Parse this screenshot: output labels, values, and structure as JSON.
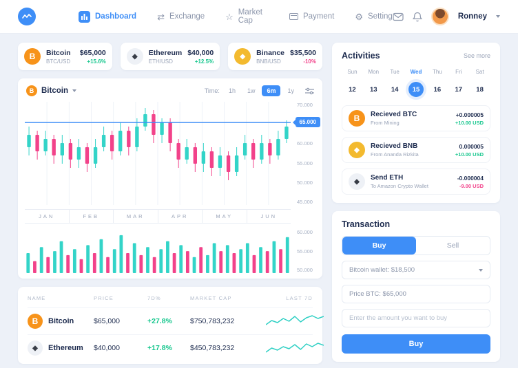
{
  "navbar": {
    "items": [
      {
        "label": "Dashboard"
      },
      {
        "label": "Exchange"
      },
      {
        "label": "Market Cap"
      },
      {
        "label": "Payment"
      },
      {
        "label": "Setting"
      }
    ],
    "user_name": "Ronney"
  },
  "icons": {
    "exchange": "⇄",
    "market_cap": "☆",
    "setting": "⚙",
    "bitcoin": "B",
    "ethereum": "◆",
    "binance": "◆"
  },
  "price_cards": [
    {
      "name": "Bitcoin",
      "pair": "BTC/USD",
      "price": "$65,000",
      "change": "+15.6%"
    },
    {
      "name": "Ethereum",
      "pair": "ETH/USD",
      "price": "$40,000",
      "change": "+12.5%"
    },
    {
      "name": "Binance",
      "pair": "BNB/USD",
      "price": "$35,500",
      "change": "-10%"
    }
  ],
  "chart_card": {
    "coin": "Bitcoin",
    "time_label": "Time:",
    "ranges": [
      {
        "label": "1h"
      },
      {
        "label": "1w"
      },
      {
        "label": "6m"
      },
      {
        "label": "1y"
      }
    ],
    "active_range": "6m",
    "y_axis": [
      "70.000",
      "65.000",
      "60.000",
      "55.000",
      "50.000",
      "45.000"
    ],
    "price_badge": "65.000",
    "months": [
      "JAN",
      "FEB",
      "MAR",
      "APR",
      "MAY",
      "JUN"
    ],
    "volume_axis": [
      "60.000",
      "55.000",
      "50.000"
    ]
  },
  "market_table": {
    "headers": [
      "NAME",
      "PRICE",
      "7D%",
      "MARKET CAP",
      "LAST 7D"
    ],
    "rows": [
      {
        "name": "Bitcoin",
        "price": "$65,000",
        "change": "+27.8%",
        "market_cap": "$750,783,232"
      },
      {
        "name": "Ethereum",
        "price": "$40,000",
        "change": "+17.8%",
        "market_cap": "$450,783,232"
      }
    ]
  },
  "activities": {
    "title": "Activities",
    "see_more": "See more",
    "days": [
      {
        "name": "Sun",
        "date": "12"
      },
      {
        "name": "Mon",
        "date": "13"
      },
      {
        "name": "Tue",
        "date": "14"
      },
      {
        "name": "Wed",
        "date": "15"
      },
      {
        "name": "Thu",
        "date": "16"
      },
      {
        "name": "Fri",
        "date": "17"
      },
      {
        "name": "Sat",
        "date": "18"
      }
    ],
    "active_day": "Wed",
    "items": [
      {
        "title": "Recieved BTC",
        "subtitle": "From Mining",
        "amount": "+0.000005",
        "usd": "+10.00 USD"
      },
      {
        "title": "Recieved BNB",
        "subtitle": "From Ananda Rizkita",
        "amount": "0.000005",
        "usd": "+10.00 USD"
      },
      {
        "title": "Send ETH",
        "subtitle": "To Amazon Crypto Wallet",
        "amount": "-0.000004",
        "usd": "-9.00 USD"
      }
    ]
  },
  "transaction": {
    "title": "Transaction",
    "tabs": [
      {
        "label": "Buy"
      },
      {
        "label": "Sell"
      }
    ],
    "active_tab": "Buy",
    "wallet_value": "Bitcoin wallet: $18,500",
    "price_value": "Price BTC: $65,000",
    "amount_placeholder": "Enter the amount you want to buy",
    "submit_label": "Buy"
  },
  "colors": {
    "accent": "#3e8ef7",
    "up": "#17c78e",
    "down": "#f2428a",
    "bitcoin": "#f7931a",
    "binance": "#f3ba2f"
  },
  "chart_data": {
    "type": "candlestick",
    "y_range": [
      45,
      70
    ],
    "price_line": 65,
    "up_color": "#33d4c8",
    "down_color": "#f2428a",
    "spark_color": "#2fd0c4",
    "candles": [
      [
        59,
        64,
        57,
        62
      ],
      [
        62,
        63,
        56,
        58
      ],
      [
        58,
        63,
        57,
        61
      ],
      [
        61,
        62,
        55,
        57
      ],
      [
        57,
        62,
        55,
        60
      ],
      [
        60,
        61,
        54,
        56
      ],
      [
        56,
        61,
        54,
        59
      ],
      [
        59,
        60,
        53,
        55
      ],
      [
        55,
        61,
        54,
        59
      ],
      [
        59,
        64,
        58,
        62
      ],
      [
        62,
        63,
        56,
        58
      ],
      [
        58,
        65,
        57,
        63
      ],
      [
        63,
        64,
        57,
        59
      ],
      [
        59,
        66,
        58,
        64
      ],
      [
        64,
        68.5,
        63,
        67
      ],
      [
        67,
        68,
        60,
        62
      ],
      [
        62,
        66,
        60,
        65
      ],
      [
        65,
        66,
        58,
        60
      ],
      [
        60,
        61,
        54,
        56
      ],
      [
        56,
        61,
        55,
        59
      ],
      [
        59,
        60,
        53,
        55
      ],
      [
        55,
        60,
        53,
        58
      ],
      [
        58,
        59,
        52,
        54
      ],
      [
        54,
        59,
        52,
        57
      ],
      [
        57,
        58,
        51,
        53
      ],
      [
        53,
        59,
        52,
        57
      ],
      [
        57,
        62,
        56,
        60
      ],
      [
        60,
        61,
        54,
        56
      ],
      [
        56,
        62,
        55,
        60
      ],
      [
        60,
        61,
        55,
        57
      ],
      [
        57,
        63,
        56,
        61
      ],
      [
        61,
        65.5,
        60,
        64
      ]
    ],
    "volume": {
      "values": [
        0.5,
        0.3,
        0.65,
        0.4,
        0.55,
        0.8,
        0.45,
        0.6,
        0.35,
        0.7,
        0.5,
        0.85,
        0.4,
        0.6,
        0.95,
        0.5,
        0.75,
        0.45,
        0.65,
        0.4,
        0.6,
        0.8,
        0.5,
        0.7,
        0.55,
        0.4,
        0.65,
        0.45,
        0.75,
        0.55,
        0.7,
        0.5,
        0.6,
        0.75,
        0.45,
        0.65,
        0.55,
        0.8,
        0.6,
        0.9
      ],
      "colors": [
        0,
        1,
        0,
        1,
        0,
        0,
        1,
        0,
        1,
        0,
        1,
        0,
        1,
        0,
        0,
        1,
        0,
        1,
        0,
        1,
        0,
        0,
        1,
        0,
        1,
        0,
        1,
        0,
        0,
        1,
        0,
        1,
        0,
        0,
        1,
        0,
        1,
        0,
        1,
        0
      ]
    },
    "sparklines": {
      "bitcoin": [
        16,
        10,
        13,
        7,
        11,
        4,
        12,
        6,
        3,
        7,
        4
      ],
      "ethereum": [
        17,
        11,
        14,
        9,
        12,
        6,
        13,
        5,
        9,
        4,
        7
      ]
    }
  }
}
